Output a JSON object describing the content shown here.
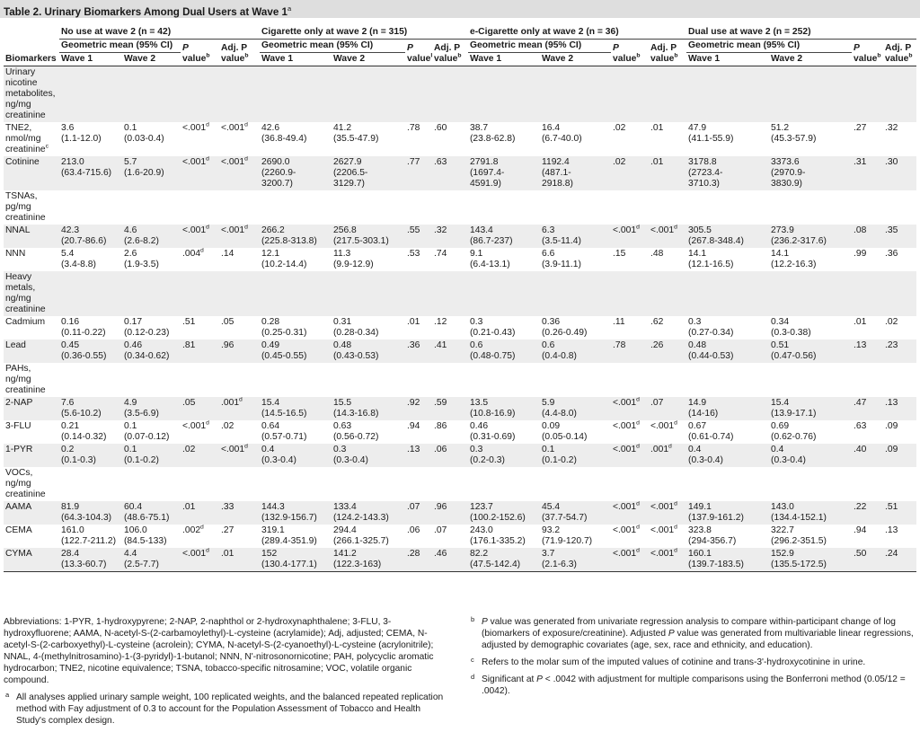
{
  "title": "Table 2. Urinary Biomarkers Among Dual Users at Wave 1",
  "title_sup": "a",
  "columns": {
    "biomarkers": "Biomarkers",
    "gm": "Geometric mean (95% CI)",
    "wave1": "Wave 1",
    "wave2": "Wave 2",
    "p_top": "P",
    "p_bottom": "value",
    "p_sup": "b",
    "adj_top": "Adj. P",
    "adj_bottom": "value",
    "adj_sup": "b"
  },
  "groups": [
    "No use at wave 2 (n = 42)",
    "Cigarette only at wave 2 (n = 315)",
    "e-Cigarette only at wave 2 (n = 36)",
    "Dual use at wave 2 (n = 252)"
  ],
  "rows": [
    {
      "type": "section",
      "label": [
        "Urinary",
        "nicotine",
        "metabolites,",
        "ng/mg",
        "creatinine"
      ]
    },
    {
      "type": "data",
      "label": [
        "TNE2,",
        "nmol/mg",
        "creatinine"
      ],
      "label_sup": "c",
      "cells": [
        {
          "w1": [
            "3.6",
            "(1.1-12.0)"
          ],
          "w2": [
            "0.1",
            "(0.03-0.4)"
          ],
          "p": "<.001",
          "ps": "d",
          "a": "<.001",
          "as": "d"
        },
        {
          "w1": [
            "42.6",
            "(36.8-49.4)"
          ],
          "w2": [
            "41.2",
            "(35.5-47.9)"
          ],
          "p": ".78",
          "ps": "",
          "a": ".60",
          "as": ""
        },
        {
          "w1": [
            "38.7",
            "(23.8-62.8)"
          ],
          "w2": [
            "16.4",
            "(6.7-40.0)"
          ],
          "p": ".02",
          "ps": "",
          "a": ".01",
          "as": ""
        },
        {
          "w1": [
            "47.9",
            "(41.1-55.9)"
          ],
          "w2": [
            "51.2",
            "(45.3-57.9)"
          ],
          "p": ".27",
          "ps": "",
          "a": ".32",
          "as": ""
        }
      ]
    },
    {
      "type": "data",
      "label": [
        "Cotinine"
      ],
      "label_sup": "",
      "cells": [
        {
          "w1": [
            "213.0",
            "(63.4-715.6)"
          ],
          "w2": [
            "5.7",
            "(1.6-20.9)"
          ],
          "p": "<.001",
          "ps": "d",
          "a": "<.001",
          "as": "d"
        },
        {
          "w1": [
            "2690.0",
            "(2260.9-",
            "3200.7)"
          ],
          "w2": [
            "2627.9",
            "(2206.5-",
            "3129.7)"
          ],
          "p": ".77",
          "ps": "",
          "a": ".63",
          "as": ""
        },
        {
          "w1": [
            "2791.8",
            "(1697.4-",
            "4591.9)"
          ],
          "w2": [
            "1192.4",
            "(487.1-",
            "2918.8)"
          ],
          "p": ".02",
          "ps": "",
          "a": ".01",
          "as": ""
        },
        {
          "w1": [
            "3178.8",
            "(2723.4-",
            "3710.3)"
          ],
          "w2": [
            "3373.6",
            "(2970.9-",
            "3830.9)"
          ],
          "p": ".31",
          "ps": "",
          "a": ".30",
          "as": ""
        }
      ]
    },
    {
      "type": "section",
      "label": [
        "TSNAs,",
        "pg/mg",
        "creatinine"
      ]
    },
    {
      "type": "data",
      "label": [
        "NNAL"
      ],
      "label_sup": "",
      "cells": [
        {
          "w1": [
            "42.3",
            "(20.7-86.6)"
          ],
          "w2": [
            "4.6",
            "(2.6-8.2)"
          ],
          "p": "<.001",
          "ps": "d",
          "a": "<.001",
          "as": "d"
        },
        {
          "w1": [
            "266.2",
            "(225.8-313.8)"
          ],
          "w2": [
            "256.8",
            "(217.5-303.1)"
          ],
          "p": ".55",
          "ps": "",
          "a": ".32",
          "as": ""
        },
        {
          "w1": [
            "143.4",
            "(86.7-237)"
          ],
          "w2": [
            "6.3",
            "(3.5-11.4)"
          ],
          "p": "<.001",
          "ps": "d",
          "a": "<.001",
          "as": "d"
        },
        {
          "w1": [
            "305.5",
            "(267.8-348.4)"
          ],
          "w2": [
            "273.9",
            "(236.2-317.6)"
          ],
          "p": ".08",
          "ps": "",
          "a": ".35",
          "as": ""
        }
      ]
    },
    {
      "type": "data",
      "label": [
        "NNN"
      ],
      "label_sup": "",
      "cells": [
        {
          "w1": [
            "5.4",
            "(3.4-8.8)"
          ],
          "w2": [
            "2.6",
            "(1.9-3.5)"
          ],
          "p": ".004",
          "ps": "d",
          "a": ".14",
          "as": ""
        },
        {
          "w1": [
            "12.1",
            "(10.2-14.4)"
          ],
          "w2": [
            "11.3",
            "(9.9-12.9)"
          ],
          "p": ".53",
          "ps": "",
          "a": ".74",
          "as": ""
        },
        {
          "w1": [
            "9.1",
            "(6.4-13.1)"
          ],
          "w2": [
            "6.6",
            "(3.9-11.1)"
          ],
          "p": ".15",
          "ps": "",
          "a": ".48",
          "as": ""
        },
        {
          "w1": [
            "14.1",
            "(12.1-16.5)"
          ],
          "w2": [
            "14.1",
            "(12.2-16.3)"
          ],
          "p": ".99",
          "ps": "",
          "a": ".36",
          "as": ""
        }
      ]
    },
    {
      "type": "section",
      "label": [
        "Heavy",
        "metals,",
        "ng/mg",
        "creatinine"
      ]
    },
    {
      "type": "data",
      "label": [
        "Cadmium"
      ],
      "label_sup": "",
      "cells": [
        {
          "w1": [
            "0.16",
            "(0.11-0.22)"
          ],
          "w2": [
            "0.17",
            "(0.12-0.23)"
          ],
          "p": ".51",
          "ps": "",
          "a": ".05",
          "as": ""
        },
        {
          "w1": [
            "0.28",
            "(0.25-0.31)"
          ],
          "w2": [
            "0.31",
            "(0.28-0.34)"
          ],
          "p": ".01",
          "ps": "",
          "a": ".12",
          "as": ""
        },
        {
          "w1": [
            "0.3",
            "(0.21-0.43)"
          ],
          "w2": [
            "0.36",
            "(0.26-0.49)"
          ],
          "p": ".11",
          "ps": "",
          "a": ".62",
          "as": ""
        },
        {
          "w1": [
            "0.3",
            "(0.27-0.34)"
          ],
          "w2": [
            "0.34",
            "(0.3-0.38)"
          ],
          "p": ".01",
          "ps": "",
          "a": ".02",
          "as": ""
        }
      ]
    },
    {
      "type": "data",
      "label": [
        "Lead"
      ],
      "label_sup": "",
      "cells": [
        {
          "w1": [
            "0.45",
            "(0.36-0.55)"
          ],
          "w2": [
            "0.46",
            "(0.34-0.62)"
          ],
          "p": ".81",
          "ps": "",
          "a": ".96",
          "as": ""
        },
        {
          "w1": [
            "0.49",
            "(0.45-0.55)"
          ],
          "w2": [
            "0.48",
            "(0.43-0.53)"
          ],
          "p": ".36",
          "ps": "",
          "a": ".41",
          "as": ""
        },
        {
          "w1": [
            "0.6",
            "(0.48-0.75)"
          ],
          "w2": [
            "0.6",
            "(0.4-0.8)"
          ],
          "p": ".78",
          "ps": "",
          "a": ".26",
          "as": ""
        },
        {
          "w1": [
            "0.48",
            "(0.44-0.53)"
          ],
          "w2": [
            "0.51",
            "(0.47-0.56)"
          ],
          "p": ".13",
          "ps": "",
          "a": ".23",
          "as": ""
        }
      ]
    },
    {
      "type": "section",
      "label": [
        "PAHs,",
        "ng/mg",
        "creatinine"
      ]
    },
    {
      "type": "data",
      "label": [
        "2-NAP"
      ],
      "label_sup": "",
      "cells": [
        {
          "w1": [
            "7.6",
            "(5.6-10.2)"
          ],
          "w2": [
            "4.9",
            "(3.5-6.9)"
          ],
          "p": ".05",
          "ps": "",
          "a": ".001",
          "as": "d"
        },
        {
          "w1": [
            "15.4",
            "(14.5-16.5)"
          ],
          "w2": [
            "15.5",
            "(14.3-16.8)"
          ],
          "p": ".92",
          "ps": "",
          "a": ".59",
          "as": ""
        },
        {
          "w1": [
            "13.5",
            "(10.8-16.9)"
          ],
          "w2": [
            "5.9",
            "(4.4-8.0)"
          ],
          "p": "<.001",
          "ps": "d",
          "a": ".07",
          "as": ""
        },
        {
          "w1": [
            "14.9",
            "(14-16)"
          ],
          "w2": [
            "15.4",
            "(13.9-17.1)"
          ],
          "p": ".47",
          "ps": "",
          "a": ".13",
          "as": ""
        }
      ]
    },
    {
      "type": "data",
      "label": [
        "3-FLU"
      ],
      "label_sup": "",
      "cells": [
        {
          "w1": [
            "0.21",
            "(0.14-0.32)"
          ],
          "w2": [
            "0.1",
            "(0.07-0.12)"
          ],
          "p": "<.001",
          "ps": "d",
          "a": ".02",
          "as": ""
        },
        {
          "w1": [
            "0.64",
            "(0.57-0.71)"
          ],
          "w2": [
            "0.63",
            "(0.56-0.72)"
          ],
          "p": ".94",
          "ps": "",
          "a": ".86",
          "as": ""
        },
        {
          "w1": [
            "0.46",
            "(0.31-0.69)"
          ],
          "w2": [
            "0.09",
            "(0.05-0.14)"
          ],
          "p": "<.001",
          "ps": "d",
          "a": "<.001",
          "as": "d"
        },
        {
          "w1": [
            "0.67",
            "(0.61-0.74)"
          ],
          "w2": [
            "0.69",
            "(0.62-0.76)"
          ],
          "p": ".63",
          "ps": "",
          "a": ".09",
          "as": ""
        }
      ]
    },
    {
      "type": "data",
      "label": [
        "1-PYR"
      ],
      "label_sup": "",
      "cells": [
        {
          "w1": [
            "0.2",
            "(0.1-0.3)"
          ],
          "w2": [
            "0.1",
            "(0.1-0.2)"
          ],
          "p": ".02",
          "ps": "",
          "a": "<.001",
          "as": "d"
        },
        {
          "w1": [
            "0.4",
            "(0.3-0.4)"
          ],
          "w2": [
            "0.3",
            "(0.3-0.4)"
          ],
          "p": ".13",
          "ps": "",
          "a": ".06",
          "as": ""
        },
        {
          "w1": [
            "0.3",
            "(0.2-0.3)"
          ],
          "w2": [
            "0.1",
            "(0.1-0.2)"
          ],
          "p": "<.001",
          "ps": "d",
          "a": ".001",
          "as": "d"
        },
        {
          "w1": [
            "0.4",
            "(0.3-0.4)"
          ],
          "w2": [
            "0.4",
            "(0.3-0.4)"
          ],
          "p": ".40",
          "ps": "",
          "a": ".09",
          "as": ""
        }
      ]
    },
    {
      "type": "section",
      "label": [
        "VOCs,",
        "ng/mg",
        "creatinine"
      ]
    },
    {
      "type": "data",
      "label": [
        "AAMA"
      ],
      "label_sup": "",
      "cells": [
        {
          "w1": [
            "81.9",
            "(64.3-104.3)"
          ],
          "w2": [
            "60.4",
            "(48.6-75.1)"
          ],
          "p": ".01",
          "ps": "",
          "a": ".33",
          "as": ""
        },
        {
          "w1": [
            "144.3",
            "(132.9-156.7)"
          ],
          "w2": [
            "133.4",
            "(124.2-143.3)"
          ],
          "p": ".07",
          "ps": "",
          "a": ".96",
          "as": ""
        },
        {
          "w1": [
            "123.7",
            "(100.2-152.6)"
          ],
          "w2": [
            "45.4",
            "(37.7-54.7)"
          ],
          "p": "<.001",
          "ps": "d",
          "a": "<.001",
          "as": "d"
        },
        {
          "w1": [
            "149.1",
            "(137.9-161.2)"
          ],
          "w2": [
            "143.0",
            "(134.4-152.1)"
          ],
          "p": ".22",
          "ps": "",
          "a": ".51",
          "as": ""
        }
      ]
    },
    {
      "type": "data",
      "label": [
        "CEMA"
      ],
      "label_sup": "",
      "cells": [
        {
          "w1": [
            "161.0",
            "(122.7-211.2)"
          ],
          "w2": [
            "106.0",
            "(84.5-133)"
          ],
          "p": ".002",
          "ps": "d",
          "a": ".27",
          "as": ""
        },
        {
          "w1": [
            "319.1",
            "(289.4-351.9)"
          ],
          "w2": [
            "294.4",
            "(266.1-325.7)"
          ],
          "p": ".06",
          "ps": "",
          "a": ".07",
          "as": ""
        },
        {
          "w1": [
            "243.0",
            "(176.1-335.2)"
          ],
          "w2": [
            "93.2",
            "(71.9-120.7)"
          ],
          "p": "<.001",
          "ps": "d",
          "a": "<.001",
          "as": "d"
        },
        {
          "w1": [
            "323.8",
            "(294-356.7)"
          ],
          "w2": [
            "322.7",
            "(296.2-351.5)"
          ],
          "p": ".94",
          "ps": "",
          "a": ".13",
          "as": ""
        }
      ]
    },
    {
      "type": "data",
      "label": [
        "CYMA"
      ],
      "label_sup": "",
      "cells": [
        {
          "w1": [
            "28.4",
            "(13.3-60.7)"
          ],
          "w2": [
            "4.4",
            "(2.5-7.7)"
          ],
          "p": "<.001",
          "ps": "d",
          "a": ".01",
          "as": ""
        },
        {
          "w1": [
            "152",
            "(130.4-177.1)"
          ],
          "w2": [
            "141.2",
            "(122.3-163)"
          ],
          "p": ".28",
          "ps": "",
          "a": ".46",
          "as": ""
        },
        {
          "w1": [
            "82.2",
            "(47.5-142.4)"
          ],
          "w2": [
            "3.7",
            "(2.1-6.3)"
          ],
          "p": "<.001",
          "ps": "d",
          "a": "<.001",
          "as": "d"
        },
        {
          "w1": [
            "160.1",
            "(139.7-183.5)"
          ],
          "w2": [
            "152.9",
            "(135.5-172.5)"
          ],
          "p": ".50",
          "ps": "",
          "a": ".24",
          "as": ""
        }
      ]
    }
  ],
  "footnotes": {
    "abbreviations": "Abbreviations: 1-PYR, 1-hydroxypyrene; 2-NAP, 2-naphthol or 2-hydroxynaphthalene; 3-FLU, 3-hydroxyfluorene; AAMA, N-acetyl-S-(2-carbamoylethyl)-L-cysteine (acrylamide); Adj, adjusted; CEMA, N-acetyl-S-(2-carboxyethyl)-L-cysteine (acrolein); CYMA, N-acetyl-S-(2-cyanoethyl)-L-cysteine (acrylonitrile); NNAL, 4-(methylnitrosamino)-1-(3-pyridyl)-1-butanol; NNN, N'-nitrosonornicotine; PAH, polycyclic aromatic hydrocarbon; TNE2, nicotine equivalence; TSNA, tobacco-specific nitrosamine; VOC, volatile organic compound.",
    "a_mark": "a",
    "a": "All analyses applied urinary sample weight, 100 replicated weights, and the balanced repeated replication method with Fay adjustment of 0.3 to account for the Population Assessment of Tobacco and Health Study's complex design.",
    "b_mark": "b",
    "b_p": "P",
    "b_1": " value was generated from univariate regression analysis to compare within-participant change of log (biomarkers of exposure/creatinine). Adjusted ",
    "b_p2": "P",
    "b_2": " value was generated from multivariable linear regressions, adjusted by demographic covariates (age, sex, race and ethnicity, and education).",
    "c_mark": "c",
    "c": "Refers to the molar sum of the imputed values of cotinine and trans-3'-hydroxycotinine in urine.",
    "d_mark": "d",
    "d_1": "Significant at ",
    "d_p": "P",
    "d_2": " < .0042 with adjustment for multiple comparisons using the Bonferroni method (0.05/12 = .0042)."
  }
}
